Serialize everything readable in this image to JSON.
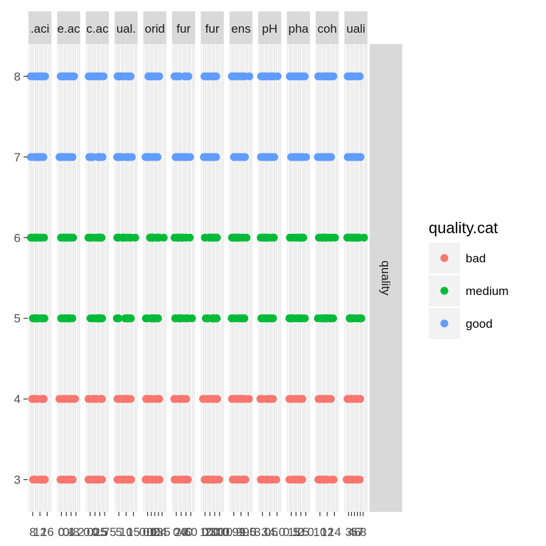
{
  "chart_data": {
    "type": "scatter",
    "facet_row_label": "quality",
    "panels": [
      {
        "label": ".aci",
        "x_ticks": [
          "8",
          "12",
          "16"
        ]
      },
      {
        "label": "e.ac",
        "x_ticks": [
          "0",
          "0.4",
          "0.8",
          "1.2"
        ]
      },
      {
        "label": "c.ac",
        "x_ticks": [
          "0",
          "0.25",
          "0.5",
          "0.75"
        ]
      },
      {
        "label": "ual.",
        "x_ticks": [
          "5",
          "10",
          "15"
        ]
      },
      {
        "label": "orid",
        "x_ticks": [
          "0.1",
          "0.2",
          "0.3",
          "0.4",
          "0.5"
        ]
      },
      {
        "label": "fur",
        "x_ticks": [
          "0",
          "20",
          "40",
          "60"
        ]
      },
      {
        "label": "fur",
        "x_ticks": [
          "0",
          "100",
          "200",
          "300"
        ]
      },
      {
        "label": "ens",
        "x_ticks": [
          "0.99",
          "0.995",
          "1.0"
        ]
      },
      {
        "label": "pH",
        "x_ticks": [
          "3.0",
          "3.5",
          "4.0"
        ]
      },
      {
        "label": "pha",
        "x_ticks": [
          "0.5",
          "1.0",
          "1.5",
          "2.0"
        ]
      },
      {
        "label": "coh",
        "x_ticks": [
          "10",
          "12",
          "14"
        ]
      },
      {
        "label": "uali",
        "x_ticks": [
          "3",
          "4",
          "5",
          "6",
          "7",
          "8"
        ]
      }
    ],
    "y_ticks": [
      "3",
      "4",
      "5",
      "6",
      "7",
      "8"
    ],
    "ylim": [
      2.6,
      8.4
    ],
    "legend": {
      "title": "quality.cat",
      "placement": "right",
      "entries": [
        {
          "label": "bad",
          "color": "#F8766D"
        },
        {
          "label": "medium",
          "color": "#00BA38"
        },
        {
          "label": "good",
          "color": "#619CFF"
        }
      ]
    },
    "series": [
      {
        "name": "bad",
        "color": "#F8766D",
        "y_values": [
          3,
          4
        ]
      },
      {
        "name": "medium",
        "color": "#00BA38",
        "y_values": [
          5,
          6
        ]
      },
      {
        "name": "good",
        "color": "#619CFF",
        "y_values": [
          7,
          8
        ]
      }
    ],
    "grid": true,
    "panel_background": "#ebebeb",
    "strip_background": "#d9d9d9"
  }
}
